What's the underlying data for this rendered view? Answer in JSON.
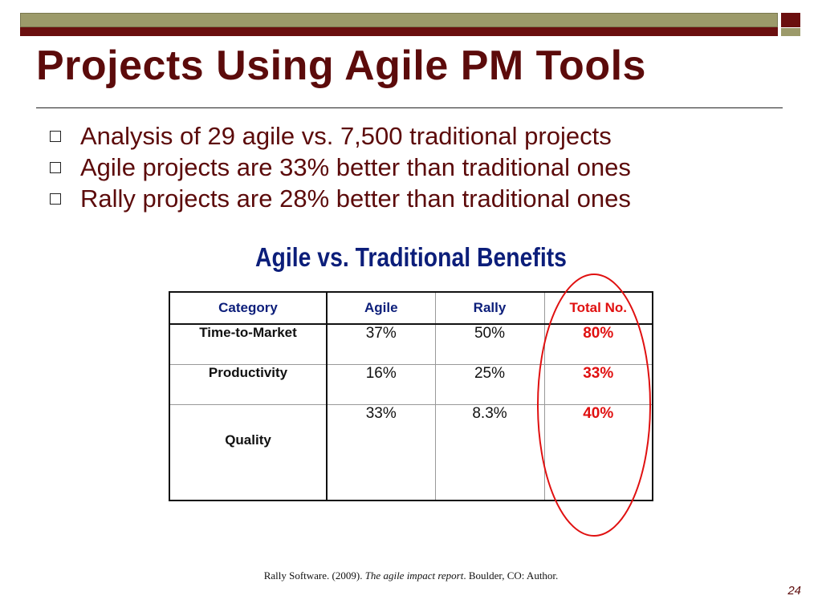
{
  "slide": {
    "title": "Projects Using Agile PM Tools",
    "bullets": [
      "Analysis of 29 agile vs. 7,500 traditional projects",
      "Agile projects are 33% better than traditional ones",
      "Rally projects are 28% better than traditional ones"
    ],
    "table_title": "Agile vs. Traditional Benefits",
    "citation_prefix": "Rally Software. (2009). ",
    "citation_italic": "The agile impact report",
    "citation_suffix": ". Boulder, CO: Author.",
    "page_number": "24"
  },
  "table": {
    "headers": [
      "Category",
      "Agile",
      "Rally",
      "Total No."
    ],
    "rows": [
      {
        "category": "Time-to-Market",
        "agile": "37%",
        "rally": "50%",
        "total": "80%"
      },
      {
        "category": "Productivity",
        "agile": "16%",
        "rally": "25%",
        "total": "33%"
      },
      {
        "category": "Quality",
        "agile": "33%",
        "rally": "8.3%",
        "total": "40%"
      }
    ]
  },
  "colors": {
    "title": "#5c0b0b",
    "table_header": "#0c1e7a",
    "highlight": "#e01010",
    "bar_olive": "#9c9a6a",
    "bar_maroon": "#6b0f0f"
  }
}
